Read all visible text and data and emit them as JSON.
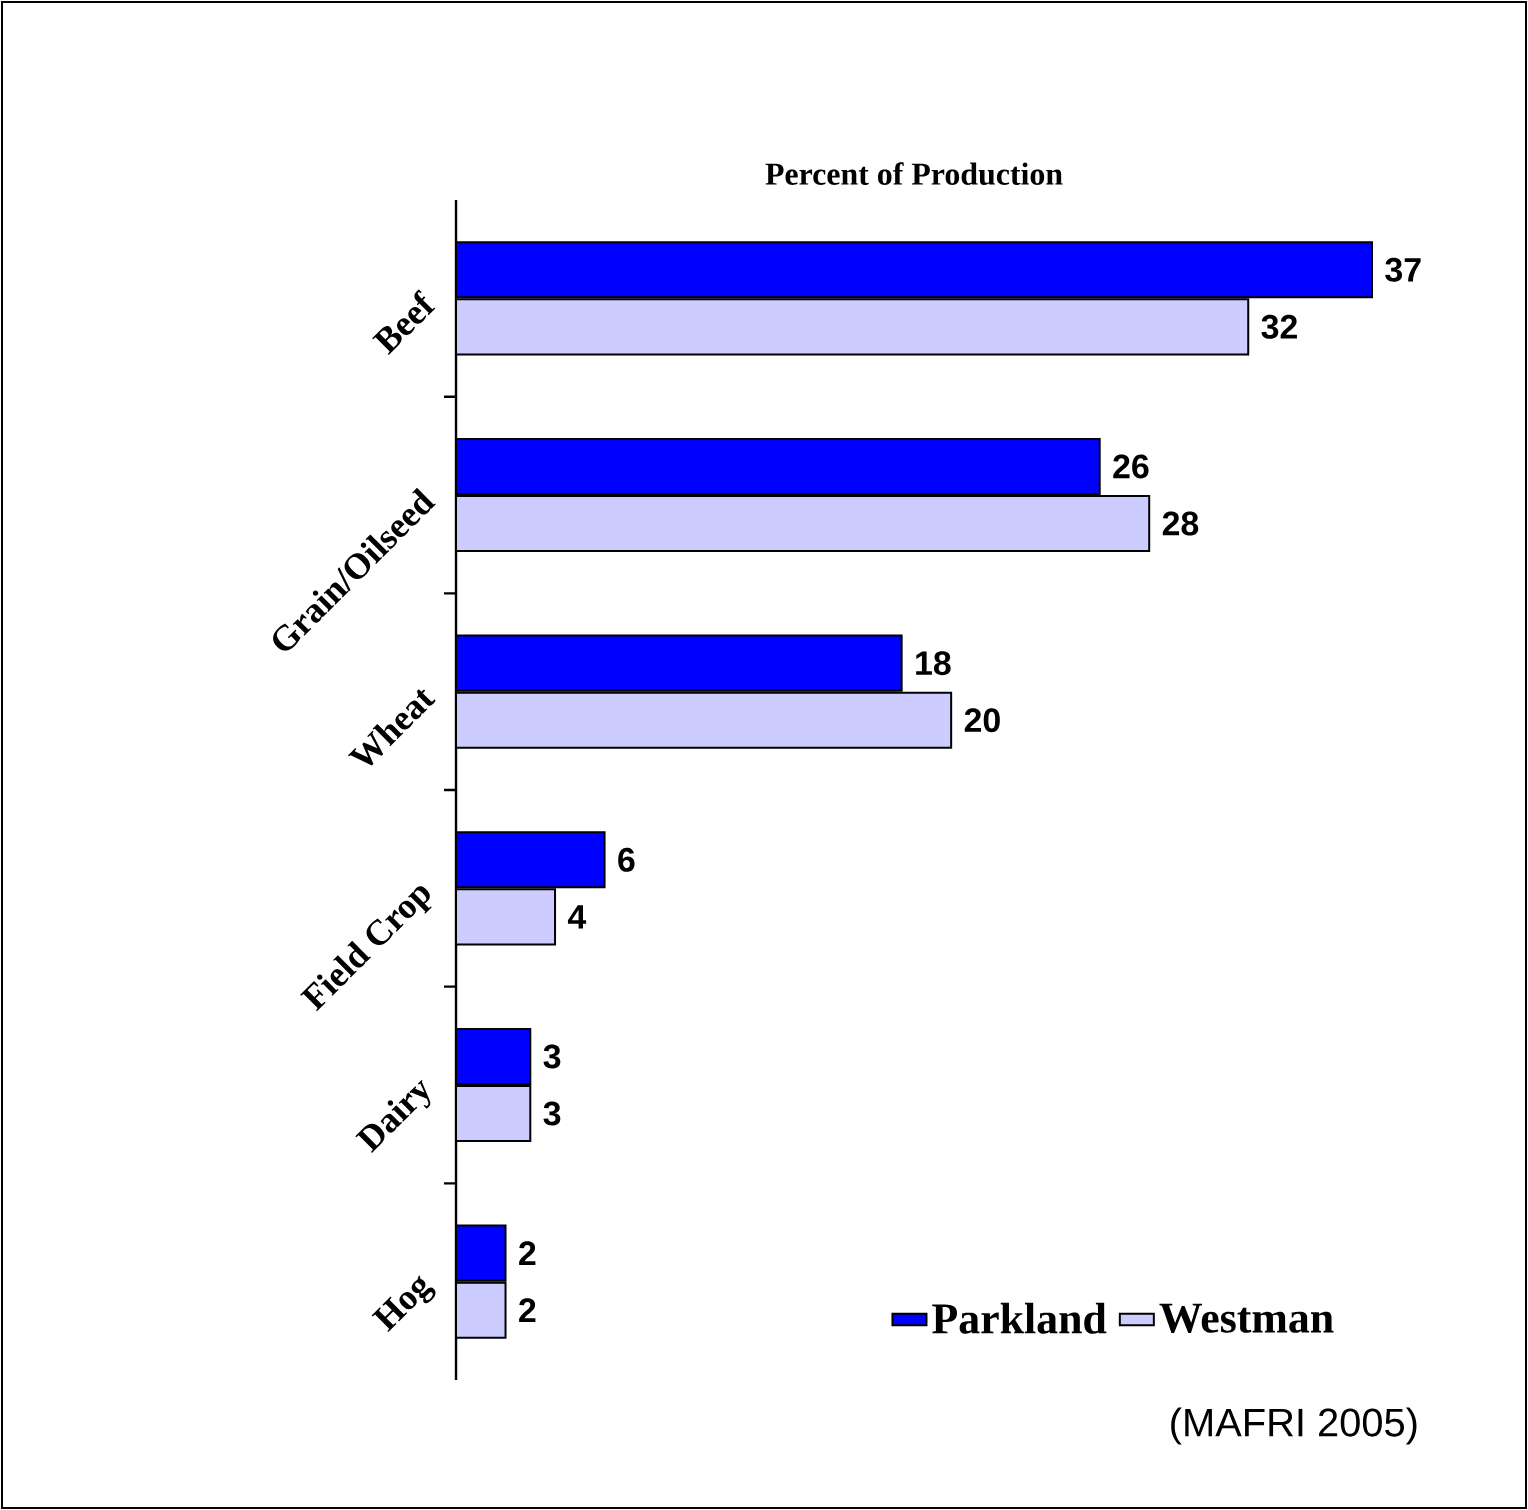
{
  "chart_data": {
    "type": "bar",
    "orientation": "horizontal",
    "title": "Percent of Production",
    "categories": [
      "Beef",
      "Grain/Oilseed",
      "Wheat",
      "Field Crop",
      "Dairy",
      "Hog"
    ],
    "series": [
      {
        "name": "Parkland",
        "color": "#0000ff",
        "values": [
          37,
          26,
          18,
          6,
          3,
          2
        ]
      },
      {
        "name": "Westman",
        "color": "#ccccff",
        "values": [
          32,
          28,
          20,
          4,
          3,
          2
        ]
      }
    ],
    "data_labels": true,
    "legend": "bottom right",
    "tick_labels": "y",
    "annotations": [
      "(MAFRI 2005)"
    ]
  }
}
